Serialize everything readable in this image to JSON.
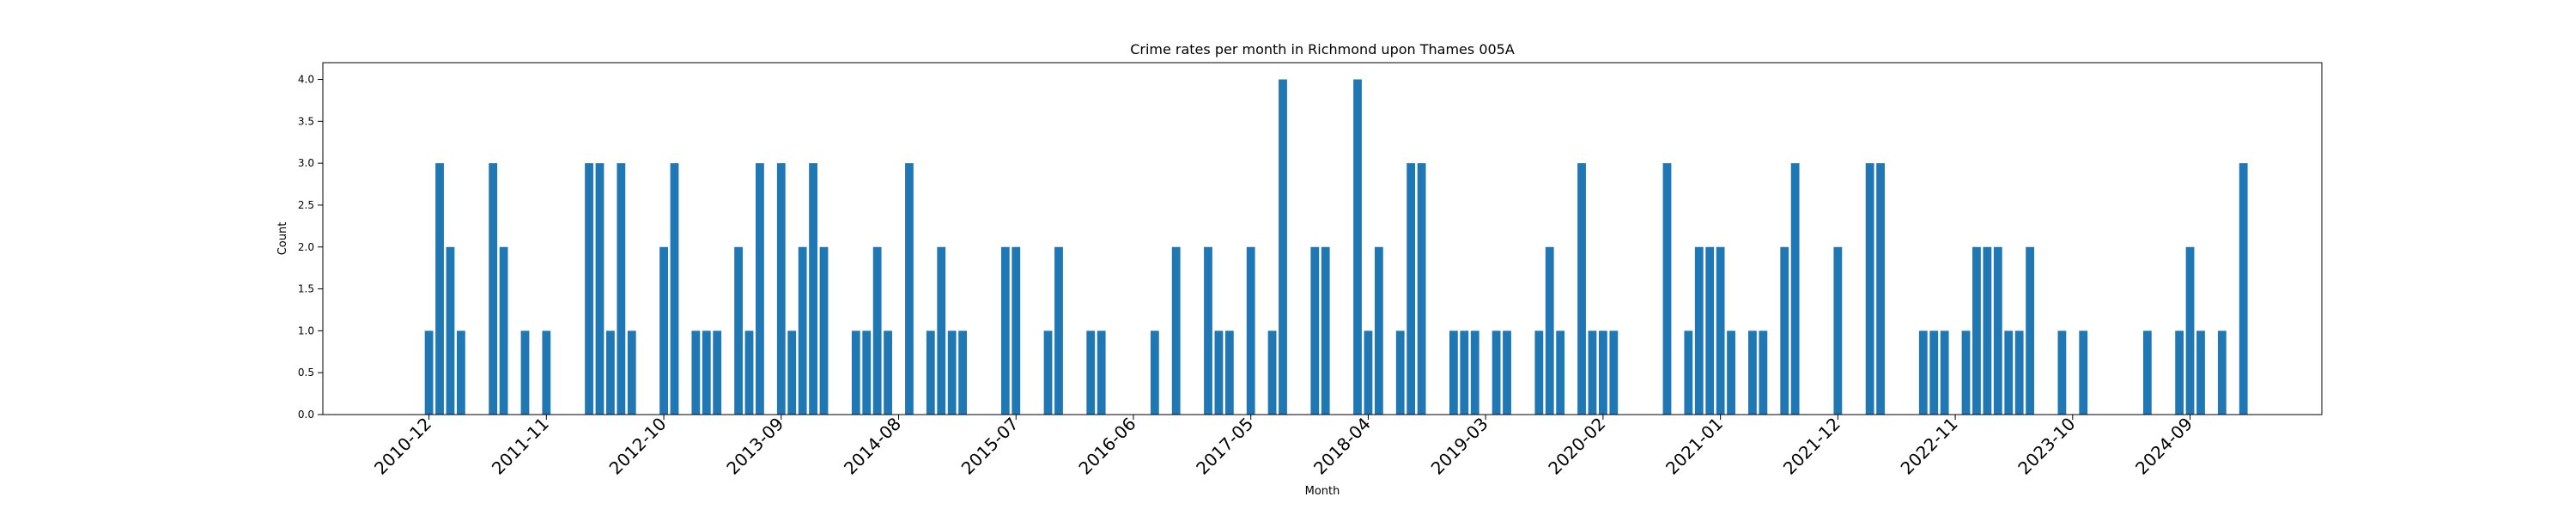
{
  "chart_data": {
    "type": "bar",
    "title": "Crime rates per month in Richmond upon Thames 005A",
    "xlabel": "Month",
    "ylabel": "Count",
    "ylim": [
      0,
      4.2
    ],
    "yticks": [
      "0.0",
      "0.5",
      "1.0",
      "1.5",
      "2.0",
      "2.5",
      "3.0",
      "3.5",
      "4.0"
    ],
    "xtick_labels": [
      "2010-12",
      "2011-11",
      "2012-10",
      "2013-09",
      "2014-08",
      "2015-07",
      "2016-06",
      "2017-05",
      "2018-04",
      "2019-03",
      "2020-02",
      "2021-01",
      "2021-12",
      "2022-11",
      "2023-10",
      "2024-09"
    ],
    "grid": false,
    "bar_color": "#1f77b4",
    "categories": [
      "2010-12",
      "2011-01",
      "2011-02",
      "2011-03",
      "2011-06",
      "2011-07",
      "2011-09",
      "2011-11",
      "2012-03",
      "2012-04",
      "2012-05",
      "2012-06",
      "2012-07",
      "2012-10",
      "2012-11",
      "2013-01",
      "2013-02",
      "2013-03",
      "2013-05",
      "2013-06",
      "2013-07",
      "2013-09",
      "2013-10",
      "2013-11",
      "2013-12",
      "2014-01",
      "2014-04",
      "2014-05",
      "2014-06",
      "2014-07",
      "2014-09",
      "2014-11",
      "2014-12",
      "2015-01",
      "2015-02",
      "2015-06",
      "2015-07",
      "2015-10",
      "2015-11",
      "2016-02",
      "2016-03",
      "2016-08",
      "2016-10",
      "2017-01",
      "2017-02",
      "2017-03",
      "2017-05",
      "2017-07",
      "2017-08",
      "2017-11",
      "2017-12",
      "2018-03",
      "2018-04",
      "2018-05",
      "2018-07",
      "2018-08",
      "2018-09",
      "2018-12",
      "2019-01",
      "2019-02",
      "2019-04",
      "2019-05",
      "2019-08",
      "2019-09",
      "2019-10",
      "2019-12",
      "2020-01",
      "2020-02",
      "2020-03",
      "2020-08",
      "2020-10",
      "2020-11",
      "2020-12",
      "2021-01",
      "2021-02",
      "2021-04",
      "2021-05",
      "2021-07",
      "2021-08",
      "2021-12",
      "2022-03",
      "2022-04",
      "2022-08",
      "2022-09",
      "2022-10",
      "2022-12",
      "2023-01",
      "2023-02",
      "2023-03",
      "2023-04",
      "2023-05",
      "2023-06",
      "2023-09",
      "2023-11",
      "2024-05",
      "2024-08",
      "2024-09",
      "2024-10",
      "2024-12",
      "2025-02"
    ],
    "values": [
      1,
      3,
      2,
      1,
      3,
      2,
      1,
      1,
      3,
      3,
      1,
      3,
      1,
      2,
      3,
      1,
      1,
      1,
      2,
      1,
      3,
      3,
      1,
      2,
      3,
      2,
      1,
      1,
      2,
      1,
      3,
      1,
      2,
      1,
      1,
      2,
      2,
      1,
      2,
      1,
      1,
      1,
      2,
      2,
      1,
      1,
      2,
      1,
      4,
      2,
      2,
      4,
      1,
      2,
      1,
      3,
      3,
      1,
      1,
      1,
      1,
      1,
      1,
      2,
      1,
      3,
      1,
      1,
      1,
      3,
      1,
      2,
      2,
      2,
      1,
      1,
      1,
      2,
      3,
      2,
      3,
      3,
      1,
      1,
      1,
      1,
      2,
      2,
      2,
      1,
      1,
      2,
      1,
      1,
      1,
      1,
      2,
      1,
      1,
      3
    ]
  }
}
